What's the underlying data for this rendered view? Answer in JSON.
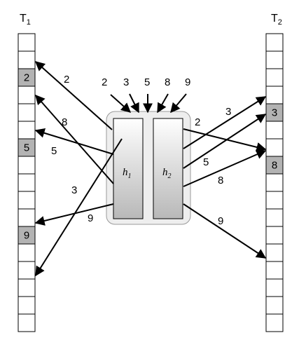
{
  "tables": {
    "left": {
      "title_main": "T",
      "title_sub": "1",
      "highlighted": [
        {
          "slot": 3,
          "value": "2"
        },
        {
          "slot": 7,
          "value": "5"
        },
        {
          "slot": 12,
          "value": "9"
        }
      ]
    },
    "right": {
      "title_main": "T",
      "title_sub": "2",
      "highlighted": [
        {
          "slot": 5,
          "value": "3"
        },
        {
          "slot": 8,
          "value": "8"
        }
      ]
    },
    "slot_count": 17
  },
  "hash_box": {
    "h1": {
      "main": "h",
      "sub": "1"
    },
    "h2": {
      "main": "h",
      "sub": "2"
    }
  },
  "inputs": [
    "2",
    "3",
    "5",
    "8",
    "9"
  ],
  "arrow_labels": {
    "left": [
      "2",
      "8",
      "5",
      "3",
      "9"
    ],
    "right": [
      "3",
      "2",
      "5",
      "8",
      "9"
    ]
  },
  "colors": {
    "filled_cell": "#b3b3b3",
    "box_fill": "#eeeeee",
    "box_stroke": "#999999"
  }
}
